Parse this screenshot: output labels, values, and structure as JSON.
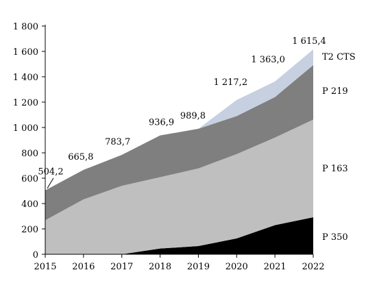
{
  "chart_data": {
    "type": "area",
    "stacked": true,
    "x": [
      "2015",
      "2016",
      "2017",
      "2018",
      "2019",
      "2020",
      "2021",
      "2022"
    ],
    "ylim": [
      0,
      1800
    ],
    "yticks": [
      0,
      200,
      400,
      600,
      800,
      1000,
      1200,
      1400,
      1600,
      1800
    ],
    "ytick_labels": [
      "0",
      "200",
      "400",
      "600",
      "800",
      "1 000",
      "1 200",
      "1 400",
      "1 600",
      "1 800"
    ],
    "grid": false,
    "series": [
      {
        "name": "P 350",
        "color": "#000000",
        "values": [
          0,
          0,
          0,
          45,
          65,
          125,
          230,
          292
        ]
      },
      {
        "name": "P 163",
        "color": "#bfbfbf",
        "values": [
          268,
          433,
          540,
          563,
          612,
          665,
          690,
          770
        ]
      },
      {
        "name": "P 219",
        "color": "#7f7f7f",
        "values": [
          236.2,
          232.8,
          243.7,
          328.9,
          312.8,
          300,
          320,
          430
        ]
      },
      {
        "name": "T2 CTS",
        "color": "#c6d0e0",
        "values": [
          0,
          0,
          0,
          0,
          0,
          127.2,
          123,
          123.4
        ]
      }
    ],
    "totals": [
      504.2,
      665.8,
      783.7,
      936.9,
      989.8,
      1217.2,
      1363.0,
      1615.4
    ],
    "total_labels": [
      "504,2",
      "665,8",
      "783,7",
      "936,9",
      "989,8",
      "1 217,2",
      "1 363,0",
      "1 615,4"
    ]
  }
}
